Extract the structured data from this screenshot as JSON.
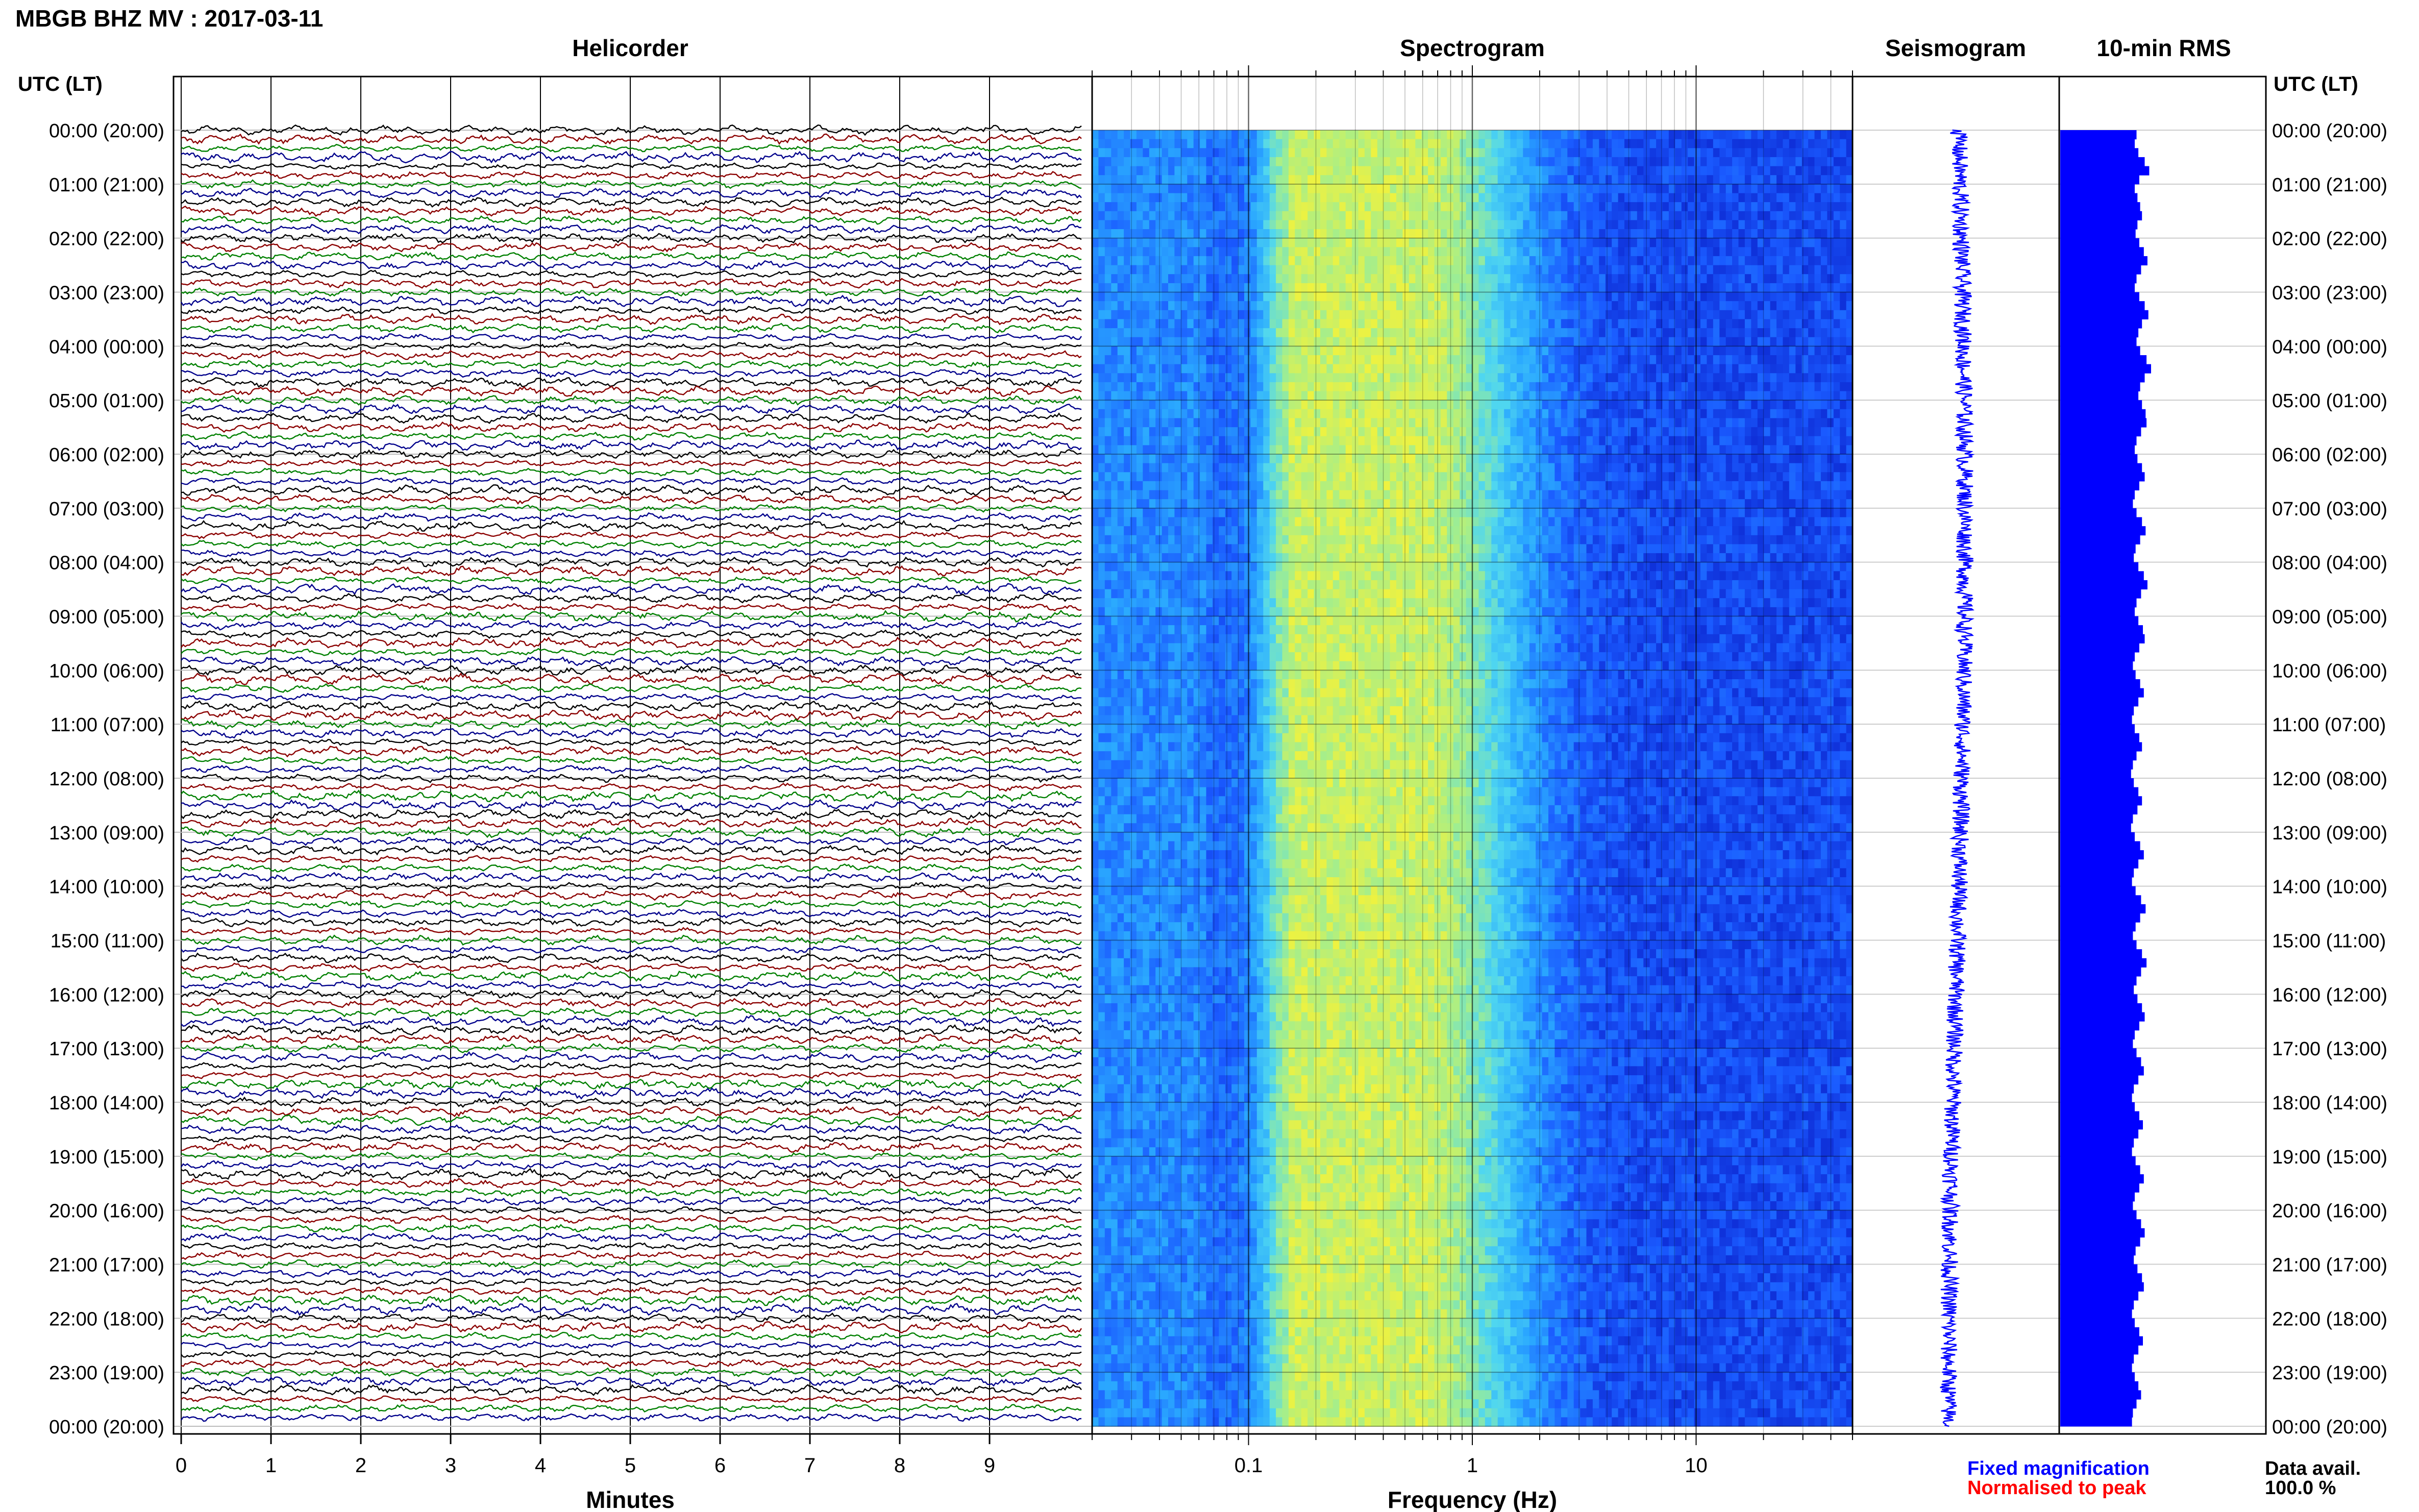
{
  "figure": {
    "title": "MBGB BHZ MV : 2017-03-11",
    "panels": {
      "helicorder": "Helicorder",
      "spectrogram": "Spectrogram",
      "seismogram": "Seismogram",
      "rms": "10-min RMS"
    },
    "time_axis_label": "UTC (LT)",
    "legend": {
      "fixed": "Fixed magnification",
      "normalised": "Normalised to peak",
      "fixed_color": "#0000ff",
      "normalised_color": "#ff0000",
      "data_avail_label": "Data avail.",
      "data_avail_value": "100.0 %"
    }
  },
  "chart_data": [
    {
      "type": "line",
      "name": "helicorder",
      "title": "Helicorder",
      "xlabel": "Minutes",
      "xlim": [
        0,
        10
      ],
      "x_ticks": [
        0,
        1,
        2,
        3,
        4,
        5,
        6,
        7,
        8,
        9
      ],
      "row_labels": [
        "00:00 (20:00)",
        "01:00 (21:00)",
        "02:00 (22:00)",
        "03:00 (23:00)",
        "04:00 (00:00)",
        "05:00 (01:00)",
        "06:00 (02:00)",
        "07:00 (03:00)",
        "08:00 (04:00)",
        "09:00 (05:00)",
        "10:00 (06:00)",
        "11:00 (07:00)",
        "12:00 (08:00)",
        "13:00 (09:00)",
        "14:00 (10:00)",
        "15:00 (11:00)",
        "16:00 (12:00)",
        "17:00 (13:00)",
        "18:00 (14:00)",
        "19:00 (15:00)",
        "20:00 (16:00)",
        "21:00 (17:00)",
        "22:00 (18:00)",
        "23:00 (19:00)",
        "00:00 (20:00)"
      ],
      "traces_per_hour": 6,
      "trace_colors": [
        "#000000",
        "#8b0000",
        "#008000",
        "#00008b"
      ],
      "grid": true
    },
    {
      "type": "heatmap",
      "name": "spectrogram",
      "title": "Spectrogram",
      "xlabel": "Frequency (Hz)",
      "x_scale": "log",
      "xlim": [
        0.02,
        50
      ],
      "x_tick_labels": [
        {
          "value": 0.1,
          "label": "0.1"
        },
        {
          "value": 1,
          "label": "1"
        },
        {
          "value": 10,
          "label": "10"
        }
      ],
      "colormap": [
        "#0a1ec8",
        "#1a5aff",
        "#2aa8ff",
        "#4fd6f0",
        "#a0ee90",
        "#f2f23c"
      ],
      "peak_frequency_band_hz": [
        0.15,
        0.6
      ]
    },
    {
      "type": "line",
      "name": "seismogram",
      "title": "Seismogram",
      "color": "#0000ff"
    },
    {
      "type": "bar",
      "name": "rms",
      "title": "10-min RMS",
      "color": "#0000ff",
      "orientation": "horizontal",
      "bins": 144,
      "relative_values": [
        0.84,
        0.82,
        0.86,
        0.93,
        0.98,
        0.87,
        0.82,
        0.85,
        0.88,
        0.9,
        0.85,
        0.83,
        0.87,
        0.92,
        0.96,
        0.89,
        0.84,
        0.82,
        0.87,
        0.93,
        0.97,
        0.9,
        0.86,
        0.84,
        0.88,
        0.95,
        1.0,
        0.93,
        0.88,
        0.86,
        0.9,
        0.94,
        0.95,
        0.89,
        0.84,
        0.82,
        0.85,
        0.9,
        0.93,
        0.87,
        0.82,
        0.8,
        0.84,
        0.9,
        0.94,
        0.88,
        0.83,
        0.81,
        0.86,
        0.92,
        0.96,
        0.89,
        0.84,
        0.82,
        0.86,
        0.91,
        0.93,
        0.87,
        0.82,
        0.8,
        0.83,
        0.88,
        0.92,
        0.86,
        0.81,
        0.79,
        0.82,
        0.87,
        0.9,
        0.84,
        0.8,
        0.78,
        0.81,
        0.86,
        0.9,
        0.85,
        0.8,
        0.78,
        0.82,
        0.88,
        0.92,
        0.86,
        0.81,
        0.79,
        0.83,
        0.89,
        0.94,
        0.88,
        0.83,
        0.8,
        0.84,
        0.9,
        0.95,
        0.89,
        0.84,
        0.81,
        0.85,
        0.9,
        0.93,
        0.87,
        0.82,
        0.8,
        0.84,
        0.89,
        0.92,
        0.86,
        0.81,
        0.79,
        0.82,
        0.87,
        0.91,
        0.86,
        0.81,
        0.79,
        0.83,
        0.88,
        0.92,
        0.87,
        0.82,
        0.8,
        0.84,
        0.89,
        0.93,
        0.88,
        0.83,
        0.81,
        0.85,
        0.9,
        0.92,
        0.86,
        0.81,
        0.79,
        0.82,
        0.87,
        0.91,
        0.86,
        0.81,
        0.79,
        0.82,
        0.86,
        0.89,
        0.84,
        0.8,
        0.79
      ]
    }
  ]
}
